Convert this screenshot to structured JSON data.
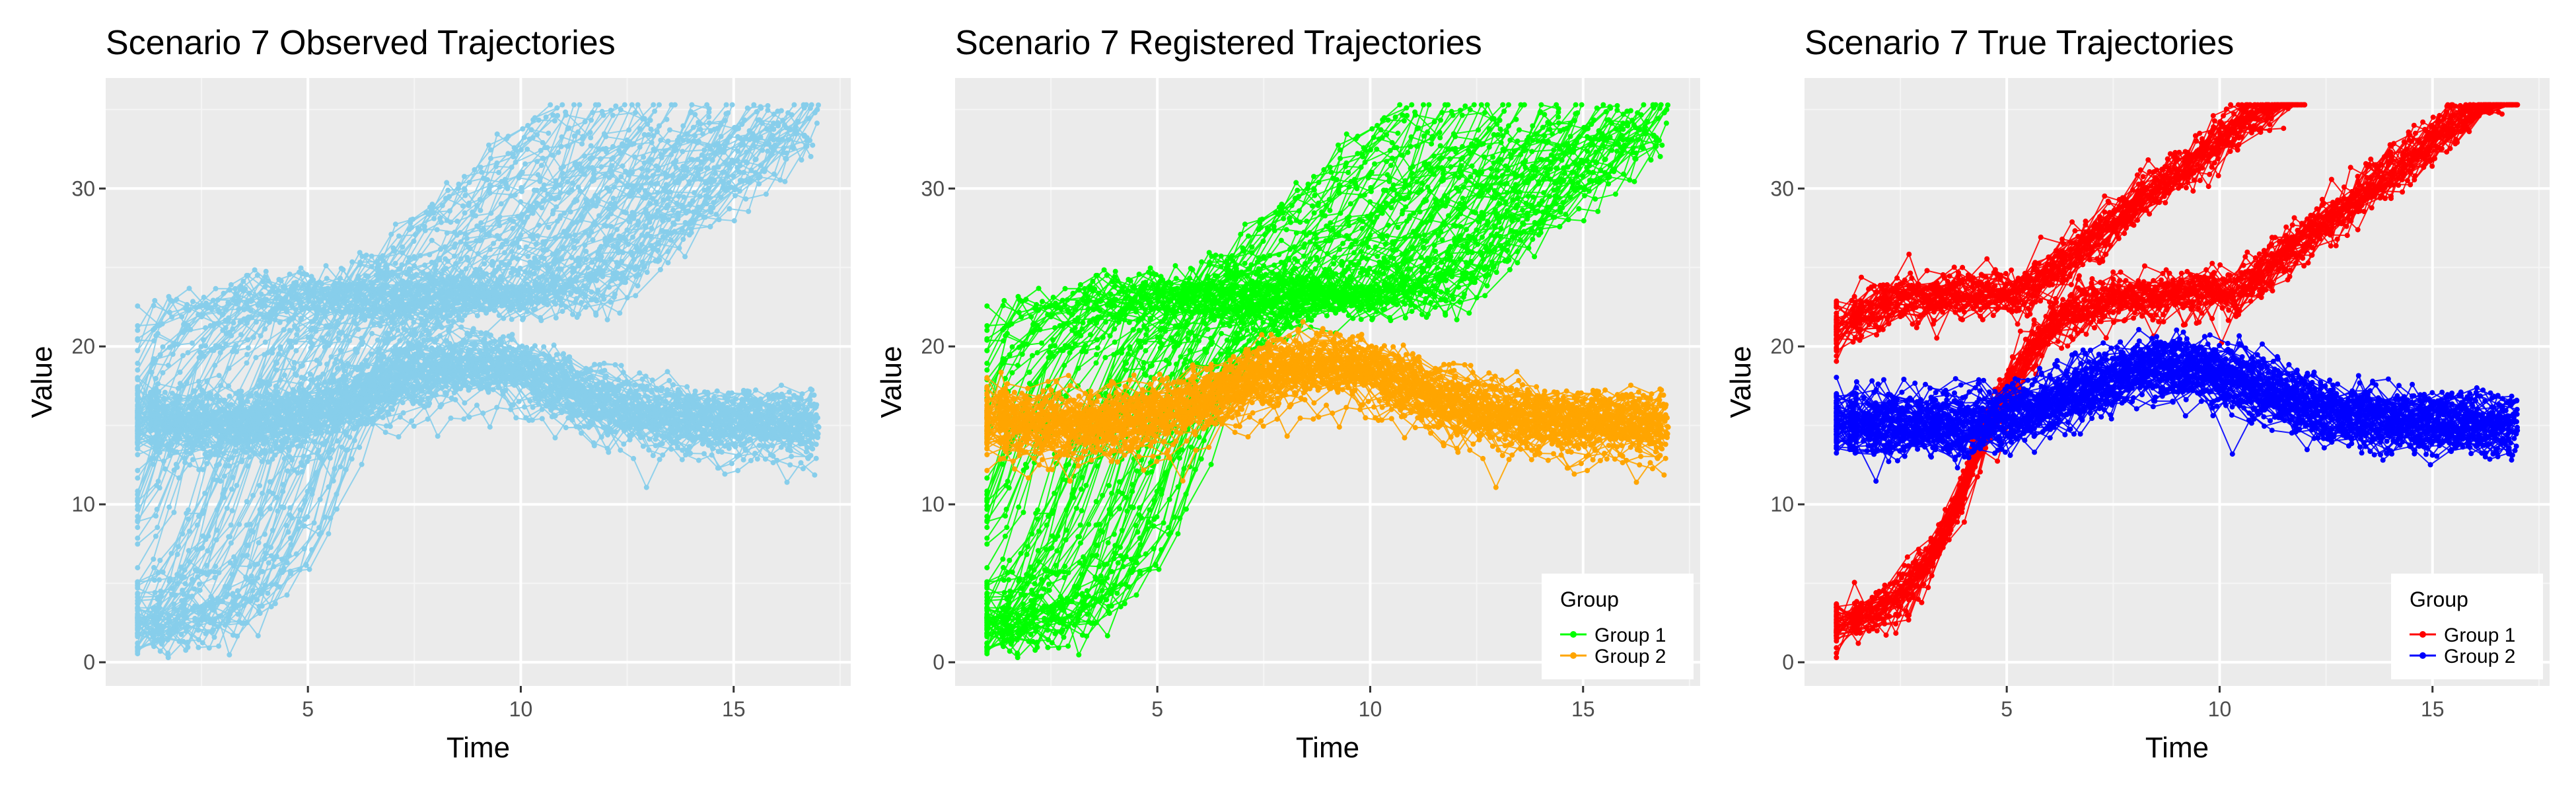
{
  "colors": {
    "panel_background": "#ebebeb",
    "grid_major": "#ffffff",
    "grid_minor": "#f5f5f5",
    "observed": "#87ceeb",
    "group_1_registered": "#00ff00",
    "group_2_registered": "#ffa500",
    "group_1_true": "#ff0000",
    "group_2_true": "#0000ff"
  },
  "chart_data": [
    {
      "type": "line",
      "title": "Scenario 7 Observed Trajectories",
      "xlabel": "Time",
      "ylabel": "Value",
      "xlim": [
        0.25,
        17.75
      ],
      "ylim": [
        -1.5,
        37
      ],
      "x_ticks": [
        5,
        10,
        15
      ],
      "y_ticks": [
        0,
        10,
        20,
        30
      ],
      "x_tick_labels": [
        "5",
        "10",
        "15"
      ],
      "y_tick_labels": [
        "0",
        "10",
        "20",
        "30"
      ],
      "grid": true,
      "legend": null,
      "series": [
        {
          "color": "#87ceeb",
          "description_points": {
            "group1_rising_band_lower": [
              [
                1,
                1.5
              ],
              [
                3,
                4
              ],
              [
                5,
                8
              ],
              [
                7,
                15
              ],
              [
                9,
                20
              ],
              [
                11,
                22
              ],
              [
                13,
                24
              ],
              [
                15,
                26
              ],
              [
                17,
                32
              ]
            ],
            "group1_rising_band_upper": [
              [
                1,
                19
              ],
              [
                3,
                24
              ],
              [
                5,
                25
              ],
              [
                7,
                34
              ],
              [
                9,
                34
              ],
              [
                11,
                35
              ],
              [
                13,
                35
              ],
              [
                15,
                35
              ],
              [
                17,
                35
              ]
            ],
            "group2_band_lower": [
              [
                1,
                15
              ],
              [
                5,
                14
              ],
              [
                9,
                17
              ],
              [
                12,
                15
              ],
              [
                15,
                13
              ],
              [
                17,
                14
              ]
            ],
            "group2_band_upper": [
              [
                1,
                19
              ],
              [
                5,
                18
              ],
              [
                9,
                20
              ],
              [
                12,
                19
              ],
              [
                15,
                17
              ],
              [
                17,
                19
              ]
            ]
          }
        }
      ]
    },
    {
      "type": "line",
      "title": "Scenario 7 Registered Trajectories",
      "xlabel": "Time",
      "ylabel": "Value",
      "xlim": [
        0.25,
        17.75
      ],
      "ylim": [
        -1.5,
        37
      ],
      "x_ticks": [
        5,
        10,
        15
      ],
      "y_ticks": [
        0,
        10,
        20,
        30
      ],
      "x_tick_labels": [
        "5",
        "10",
        "15"
      ],
      "y_tick_labels": [
        "0",
        "10",
        "20",
        "30"
      ],
      "grid": true,
      "legend": {
        "title": "Group",
        "position": "bottom-right",
        "entries": [
          {
            "label": "Group 1",
            "color": "#00ff00"
          },
          {
            "label": "Group 2",
            "color": "#ffa500"
          }
        ]
      },
      "series": [
        {
          "name": "Group 1",
          "color": "#00ff00",
          "shape": "sigmoid, rising from ~2 at t=1 to ~33 at t=17, plateau ~23 near t=9"
        },
        {
          "name": "Group 2",
          "color": "#ffa500",
          "shape": "wave around 16-18, peak ~19 near t=9, min ~15 near t=14"
        }
      ]
    },
    {
      "type": "line",
      "title": "Scenario 7 True Trajectories",
      "xlabel": "Time",
      "ylabel": "Value",
      "xlim": [
        0.25,
        17.75
      ],
      "ylim": [
        -1.5,
        37
      ],
      "x_ticks": [
        5,
        10,
        15
      ],
      "y_ticks": [
        0,
        10,
        20,
        30
      ],
      "x_tick_labels": [
        "5",
        "10",
        "15"
      ],
      "y_tick_labels": [
        "0",
        "10",
        "20",
        "30"
      ],
      "grid": true,
      "legend": {
        "title": "Group",
        "position": "bottom-right",
        "entries": [
          {
            "label": "Group 1",
            "color": "#ff0000"
          },
          {
            "label": "Group 2",
            "color": "#0000ff"
          }
        ]
      },
      "series": [
        {
          "name": "Group 1",
          "color": "#ff0000",
          "shape": "two sigmoid branches: short branch t=1..12 rising 2→35 with plateau ~24 near t=7; long branch t=1..17 rising 2→35 with plateau ~23 near t=11"
        },
        {
          "name": "Group 2",
          "color": "#0000ff",
          "shape": "wave around 16-18, peak ~19.5 near t=9, min ~15 near t=14"
        }
      ]
    }
  ]
}
